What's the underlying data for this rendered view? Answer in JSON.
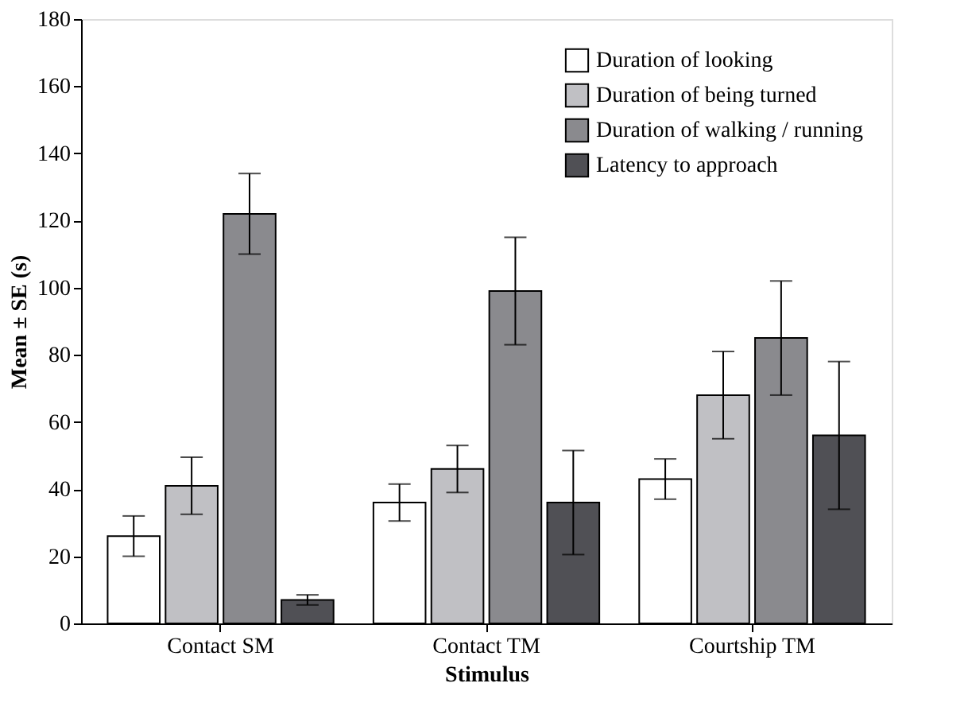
{
  "chart_data": {
    "type": "bar",
    "xlabel": "Stimulus",
    "ylabel": "Mean ± SE (s)",
    "categories": [
      "Contact SM",
      "Contact TM",
      "Courtship TM"
    ],
    "series": [
      {
        "name": "Duration of looking",
        "color": "#ffffff",
        "values": [
          26,
          36,
          43
        ],
        "errors": [
          6,
          5.5,
          6
        ]
      },
      {
        "name": "Duration of being turned",
        "color": "#c0c0c4",
        "values": [
          41,
          46,
          68
        ],
        "errors": [
          8.5,
          7,
          13
        ]
      },
      {
        "name": "Duration of walking / running",
        "color": "#8a8a8e",
        "values": [
          122,
          99,
          85
        ],
        "errors": [
          12,
          16,
          17
        ]
      },
      {
        "name": "Latency to approach",
        "color": "#505055",
        "values": [
          7,
          36,
          56
        ],
        "errors": [
          1.5,
          15.5,
          22
        ]
      }
    ],
    "ylim": [
      0,
      180
    ],
    "yticks": [
      0,
      20,
      40,
      60,
      80,
      100,
      120,
      140,
      160,
      180
    ],
    "legend": "top right",
    "grid": false
  }
}
